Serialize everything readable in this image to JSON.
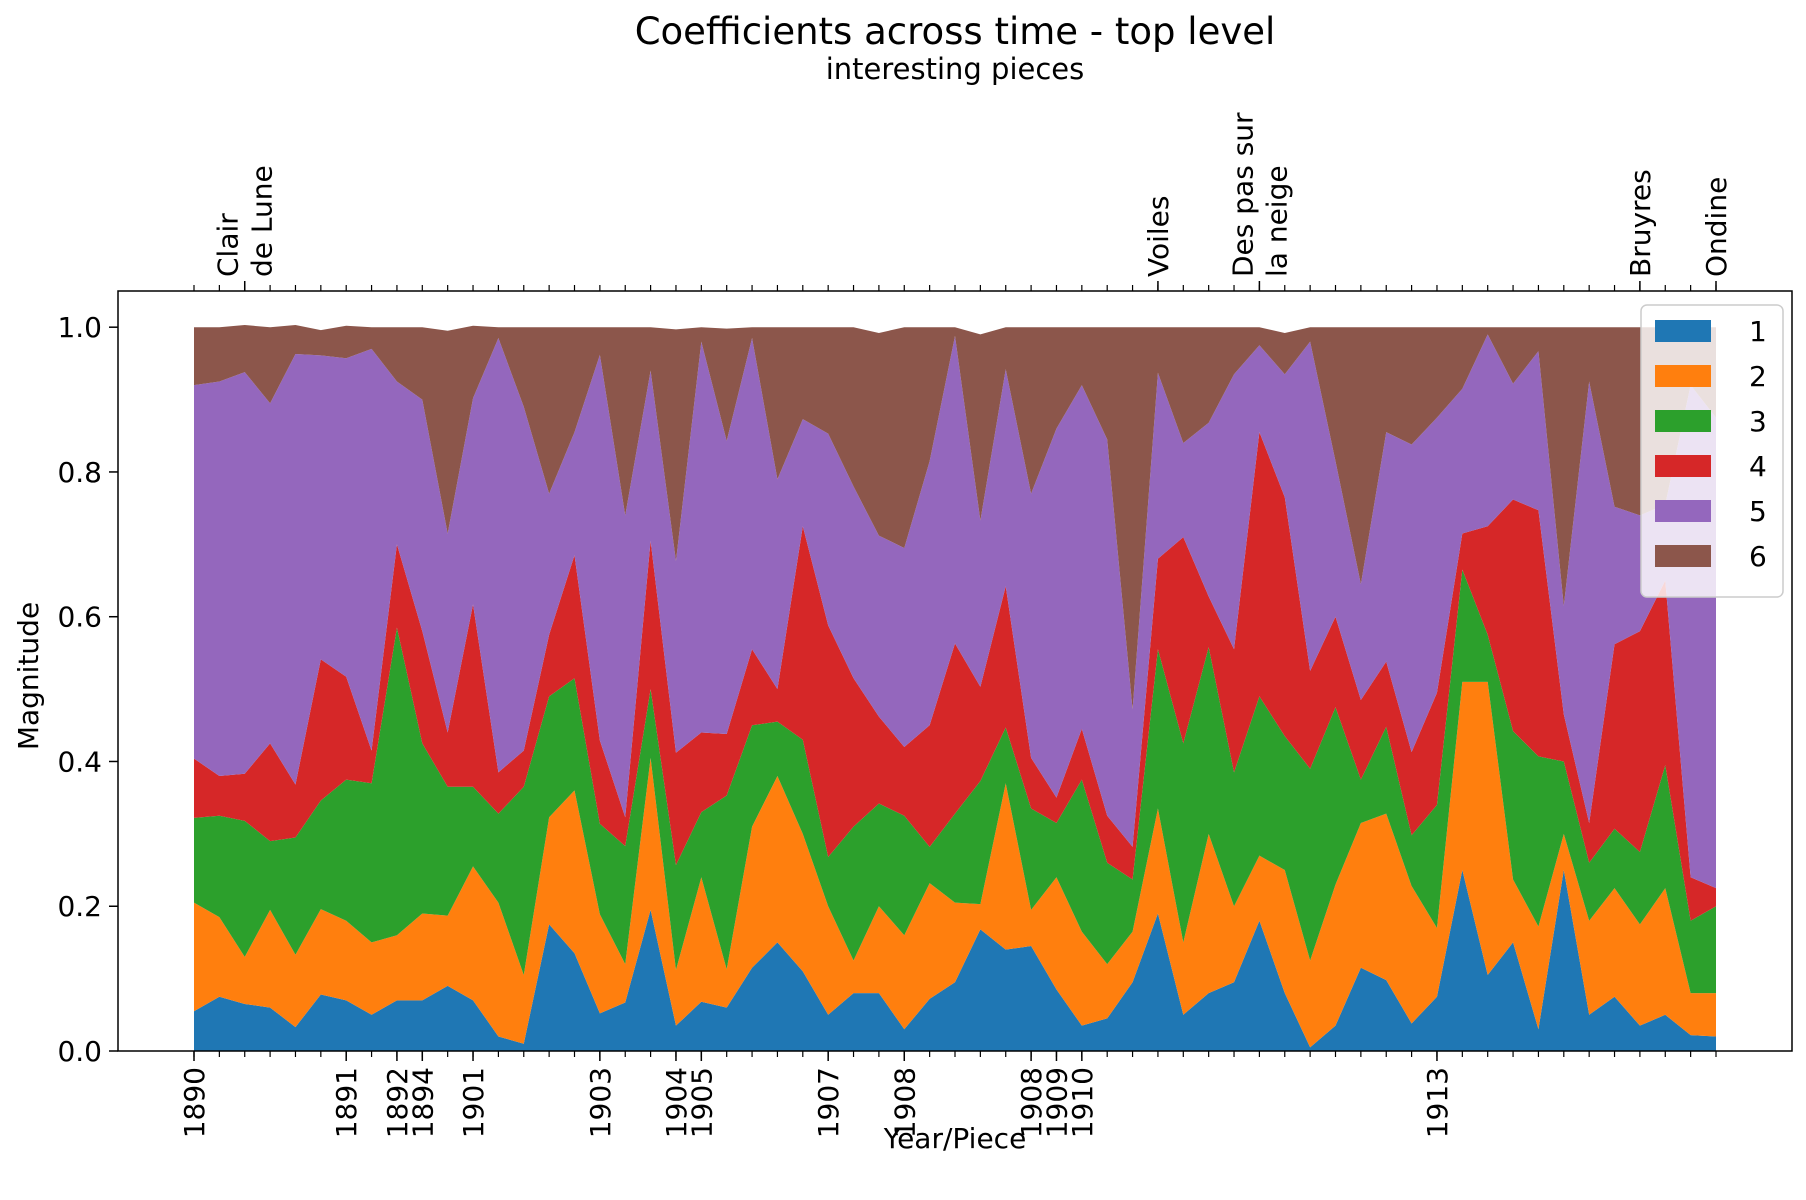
{
  "chart_data": {
    "type": "area",
    "stacked": true,
    "title": "Coefficients across time - top level",
    "subtitle": "interesting pieces",
    "xlabel": "Year/Piece",
    "ylabel": "Magnitude",
    "ylim": [
      0,
      1.05
    ],
    "yticks": [
      "0.0",
      "0.2",
      "0.4",
      "0.6",
      "0.8",
      "1.0"
    ],
    "n_points": 60,
    "bottom_ticks": [
      {
        "index": 0,
        "label": "1890"
      },
      {
        "index": 6,
        "label": "1891"
      },
      {
        "index": 8,
        "label": "1892"
      },
      {
        "index": 9,
        "label": "1894"
      },
      {
        "index": 11,
        "label": "1901"
      },
      {
        "index": 16,
        "label": "1903"
      },
      {
        "index": 19,
        "label": "1904"
      },
      {
        "index": 20,
        "label": "1905"
      },
      {
        "index": 25,
        "label": "1907"
      },
      {
        "index": 28,
        "label": "1908"
      },
      {
        "index": 33,
        "label": "1908"
      },
      {
        "index": 34,
        "label": "1909"
      },
      {
        "index": 35,
        "label": "1910"
      },
      {
        "index": 49,
        "label": "1913"
      }
    ],
    "top_ticks": [
      {
        "index": 2,
        "lines": [
          "Clair",
          "de Lune"
        ]
      },
      {
        "index": 38,
        "lines": [
          "Voiles"
        ]
      },
      {
        "index": 42,
        "lines": [
          "Des pas sur",
          "la neige"
        ]
      },
      {
        "index": 57,
        "lines": [
          "Bruyres"
        ]
      },
      {
        "index": 60,
        "lines": [
          "Ondine"
        ]
      }
    ],
    "legend": {
      "placement": "top-right"
    },
    "series": [
      {
        "name": "1",
        "color": "#1f77b4",
        "values": [
          0.055,
          0.075,
          0.065,
          0.06,
          0.033,
          0.078,
          0.07,
          0.05,
          0.07,
          0.07,
          0.09,
          0.07,
          0.02,
          0.01,
          0.175,
          0.135,
          0.052,
          0.067,
          0.195,
          0.035,
          0.068,
          0.06,
          0.115,
          0.15,
          0.11,
          0.05,
          0.08,
          0.08,
          0.03,
          0.072,
          0.095,
          0.168,
          0.14,
          0.145,
          0.085,
          0.035,
          0.045,
          0.095,
          0.19,
          0.05,
          0.08,
          0.095,
          0.18,
          0.08,
          0.005,
          0.035,
          0.115,
          0.098,
          0.038,
          0.075,
          0.25,
          0.105,
          0.15,
          0.03,
          0.25,
          0.05,
          0.075,
          0.035,
          0.05,
          0.022,
          0.02
        ]
      },
      {
        "name": "2",
        "color": "#ff7f0e",
        "values": [
          0.15,
          0.11,
          0.065,
          0.135,
          0.1,
          0.118,
          0.11,
          0.1,
          0.09,
          0.12,
          0.097,
          0.185,
          0.185,
          0.095,
          0.148,
          0.225,
          0.137,
          0.053,
          0.21,
          0.077,
          0.172,
          0.053,
          0.195,
          0.23,
          0.19,
          0.15,
          0.045,
          0.12,
          0.13,
          0.16,
          0.11,
          0.035,
          0.23,
          0.05,
          0.155,
          0.13,
          0.075,
          0.07,
          0.145,
          0.1,
          0.22,
          0.105,
          0.09,
          0.17,
          0.12,
          0.195,
          0.2,
          0.23,
          0.19,
          0.095,
          0.26,
          0.405,
          0.087,
          0.142,
          0.05,
          0.13,
          0.15,
          0.14,
          0.175,
          0.058,
          0.06
        ]
      },
      {
        "name": "3",
        "color": "#2ca02c",
        "values": [
          0.117,
          0.14,
          0.188,
          0.095,
          0.162,
          0.15,
          0.195,
          0.22,
          0.425,
          0.235,
          0.178,
          0.11,
          0.123,
          0.26,
          0.167,
          0.155,
          0.125,
          0.163,
          0.095,
          0.145,
          0.09,
          0.24,
          0.14,
          0.075,
          0.13,
          0.068,
          0.185,
          0.142,
          0.165,
          0.05,
          0.123,
          0.17,
          0.077,
          0.14,
          0.075,
          0.21,
          0.14,
          0.072,
          0.22,
          0.275,
          0.258,
          0.185,
          0.22,
          0.185,
          0.265,
          0.245,
          0.06,
          0.12,
          0.07,
          0.17,
          0.155,
          0.065,
          0.205,
          0.235,
          0.1,
          0.08,
          0.082,
          0.1,
          0.17,
          0.1,
          0.12
        ]
      },
      {
        "name": "4",
        "color": "#d62728",
        "values": [
          0.082,
          0.055,
          0.065,
          0.135,
          0.073,
          0.195,
          0.142,
          0.045,
          0.115,
          0.155,
          0.075,
          0.252,
          0.057,
          0.05,
          0.085,
          0.17,
          0.115,
          0.04,
          0.205,
          0.155,
          0.11,
          0.085,
          0.105,
          0.045,
          0.295,
          0.32,
          0.205,
          0.12,
          0.095,
          0.168,
          0.235,
          0.13,
          0.195,
          0.07,
          0.035,
          0.07,
          0.065,
          0.045,
          0.125,
          0.285,
          0.07,
          0.17,
          0.365,
          0.33,
          0.135,
          0.125,
          0.11,
          0.09,
          0.115,
          0.155,
          0.05,
          0.15,
          0.32,
          0.34,
          0.065,
          0.055,
          0.255,
          0.305,
          0.255,
          0.06,
          0.025
        ]
      },
      {
        "name": "5",
        "color": "#9467bd",
        "values": [
          0.516,
          0.545,
          0.555,
          0.47,
          0.595,
          0.42,
          0.44,
          0.555,
          0.225,
          0.32,
          0.275,
          0.285,
          0.6,
          0.475,
          0.195,
          0.17,
          0.533,
          0.417,
          0.235,
          0.265,
          0.54,
          0.405,
          0.43,
          0.29,
          0.148,
          0.265,
          0.265,
          0.25,
          0.275,
          0.365,
          0.425,
          0.23,
          0.3,
          0.365,
          0.51,
          0.475,
          0.52,
          0.19,
          0.257,
          0.13,
          0.24,
          0.38,
          0.12,
          0.17,
          0.455,
          0.215,
          0.16,
          0.317,
          0.425,
          0.38,
          0.2,
          0.265,
          0.16,
          0.22,
          0.15,
          0.61,
          0.19,
          0.16,
          0.105,
          0.68,
          0.65
        ]
      },
      {
        "name": "6",
        "color": "#8c564b",
        "values": [
          0.08,
          0.075,
          0.065,
          0.105,
          0.04,
          0.035,
          0.045,
          0.03,
          0.075,
          0.1,
          0.28,
          0.1,
          0.015,
          0.11,
          0.23,
          0.145,
          0.038,
          0.26,
          0.06,
          0.32,
          0.02,
          0.155,
          0.015,
          0.21,
          0.127,
          0.147,
          0.22,
          0.28,
          0.305,
          0.185,
          0.012,
          0.257,
          0.058,
          0.23,
          0.14,
          0.08,
          0.155,
          0.528,
          0.063,
          0.16,
          0.132,
          0.065,
          0.025,
          0.057,
          0.02,
          0.185,
          0.355,
          0.145,
          0.162,
          0.125,
          0.085,
          0.01,
          0.078,
          0.033,
          0.385,
          0.075,
          0.248,
          0.26,
          0.245,
          0.08,
          0.125
        ]
      }
    ]
  }
}
